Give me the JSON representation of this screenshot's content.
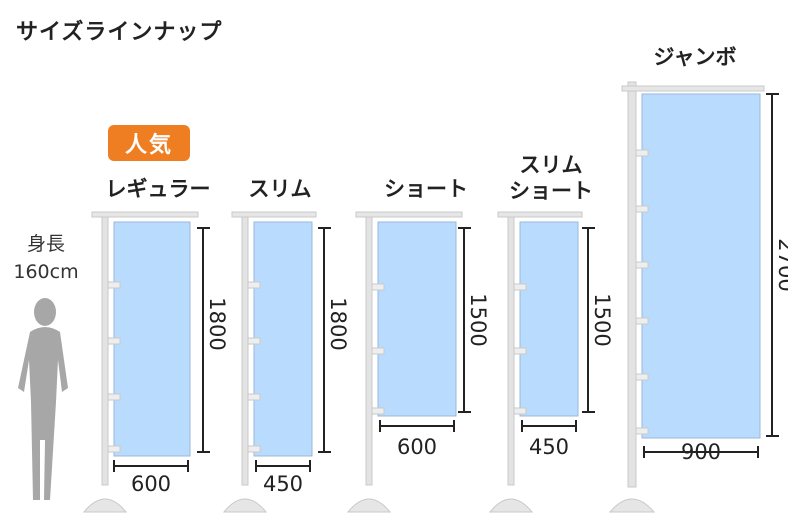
{
  "title": "サイズラインナップ",
  "badge": "人気",
  "human": {
    "line1": "身長",
    "line2": "160cm"
  },
  "colors": {
    "banner_fill": "#b9dcfe",
    "banner_stroke": "#9bb8d8",
    "pole": "#d9d9d9",
    "badge": "#ef7d22",
    "silhouette": "#a7a7a7"
  },
  "banners": [
    {
      "label_lines": [
        "レギュラー"
      ],
      "width": "600",
      "height": "1800"
    },
    {
      "label_lines": [
        "スリム"
      ],
      "width": "450",
      "height": "1800"
    },
    {
      "label_lines": [
        "ショート"
      ],
      "width": "600",
      "height": "1500"
    },
    {
      "label_lines": [
        "スリム",
        "ショート"
      ],
      "width": "450",
      "height": "1500"
    },
    {
      "label_lines": [
        "ジャンボ"
      ],
      "width": "900",
      "height": "2700"
    }
  ]
}
